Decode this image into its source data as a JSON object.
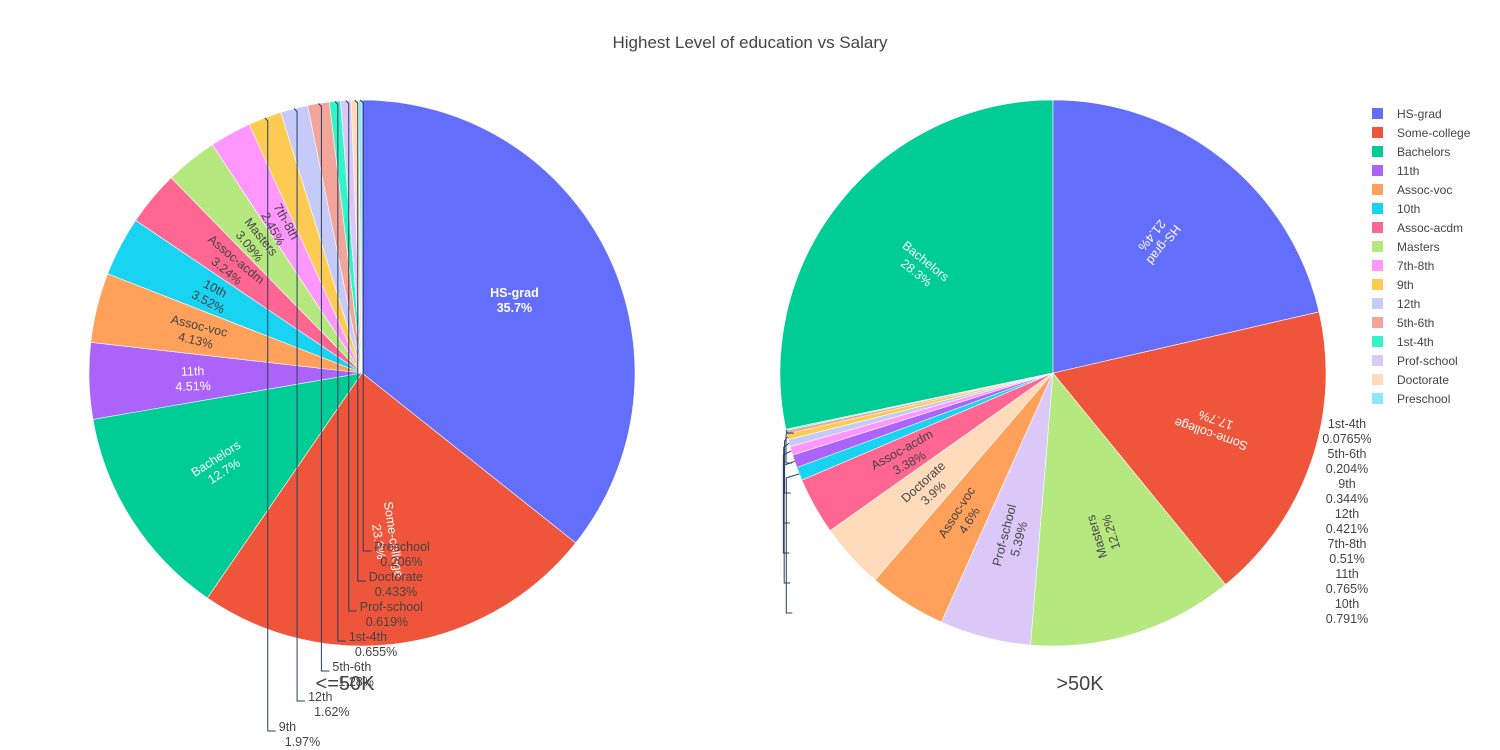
{
  "chart_title": "Highest Level of education vs Salary",
  "colors": {
    "HS-grad": "#636efa",
    "Some-college": "#ef553b",
    "Bachelors": "#00cc96",
    "11th": "#ab63fa",
    "Assoc-voc": "#ffa15a",
    "10th": "#19d3f3",
    "Assoc-acdm": "#ff6692",
    "Masters": "#b6e880",
    "7th-8th": "#ff97ff",
    "9th": "#fecb52",
    "12th": "#c6caf8",
    "5th-6th": "#f3a59a",
    "1st-4th": "#33f4c6",
    "Prof-school": "#dcc7f9",
    "Doctorate": "#ffdbbb",
    "Preschool": "#8ce9f9"
  },
  "legend": [
    "HS-grad",
    "Some-college",
    "Bachelors",
    "11th",
    "Assoc-voc",
    "10th",
    "Assoc-acdm",
    "Masters",
    "7th-8th",
    "9th",
    "12th",
    "5th-6th",
    "1st-4th",
    "Prof-school",
    "Doctorate",
    "Preschool"
  ],
  "chart_data": [
    {
      "type": "pie",
      "title": "<=50K",
      "slices": [
        {
          "label": "HS-grad",
          "value": 35.7,
          "text": "35.7%"
        },
        {
          "label": "Some-college",
          "value": 23.9,
          "text": "23.9%"
        },
        {
          "label": "Bachelors",
          "value": 12.7,
          "text": "12.7%"
        },
        {
          "label": "11th",
          "value": 4.51,
          "text": "4.51%"
        },
        {
          "label": "Assoc-voc",
          "value": 4.13,
          "text": "4.13%"
        },
        {
          "label": "10th",
          "value": 3.52,
          "text": "3.52%"
        },
        {
          "label": "Assoc-acdm",
          "value": 3.24,
          "text": "3.24%"
        },
        {
          "label": "Masters",
          "value": 3.09,
          "text": "3.09%"
        },
        {
          "label": "7th-8th",
          "value": 2.45,
          "text": "2.45%"
        },
        {
          "label": "9th",
          "value": 1.97,
          "text": "1.97%"
        },
        {
          "label": "12th",
          "value": 1.62,
          "text": "1.62%"
        },
        {
          "label": "5th-6th",
          "value": 1.28,
          "text": "1.28%"
        },
        {
          "label": "1st-4th",
          "value": 0.655,
          "text": "0.655%"
        },
        {
          "label": "Prof-school",
          "value": 0.619,
          "text": "0.619%"
        },
        {
          "label": "Doctorate",
          "value": 0.433,
          "text": "0.433%"
        },
        {
          "label": "Preschool",
          "value": 0.206,
          "text": "0.206%"
        }
      ]
    },
    {
      "type": "pie",
      "title": ">50K",
      "slices": [
        {
          "label": "Bachelors",
          "value": 28.3,
          "text": "28.3%"
        },
        {
          "label": "1st-4th",
          "value": 0.0765,
          "text": "0.0765%"
        },
        {
          "label": "5th-6th",
          "value": 0.204,
          "text": "0.204%"
        },
        {
          "label": "9th",
          "value": 0.344,
          "text": "0.344%"
        },
        {
          "label": "12th",
          "value": 0.421,
          "text": "0.421%"
        },
        {
          "label": "7th-8th",
          "value": 0.51,
          "text": "0.51%"
        },
        {
          "label": "11th",
          "value": 0.765,
          "text": "0.765%"
        },
        {
          "label": "10th",
          "value": 0.791,
          "text": "0.791%"
        },
        {
          "label": "Assoc-acdm",
          "value": 3.38,
          "text": "3.38%"
        },
        {
          "label": "Doctorate",
          "value": 3.9,
          "text": "3.9%"
        },
        {
          "label": "Assoc-voc",
          "value": 4.6,
          "text": "4.6%"
        },
        {
          "label": "Prof-school",
          "value": 5.39,
          "text": "5.39%"
        },
        {
          "label": "Masters",
          "value": 12.2,
          "text": "12.2%"
        },
        {
          "label": "Some-college",
          "value": 17.7,
          "text": "17.7%"
        },
        {
          "label": "HS-grad",
          "value": 21.4,
          "text": "21.4%"
        }
      ]
    }
  ]
}
